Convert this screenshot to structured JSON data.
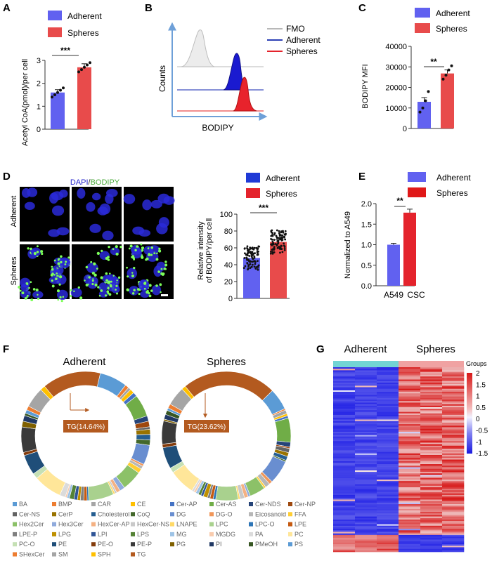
{
  "colors": {
    "adherent": "#6161f0",
    "spheres": "#e84b4b",
    "blue": "#1f3ad6",
    "red": "#e4232c",
    "teal": "#72d4d4",
    "pink": "#f0a2a2"
  },
  "panel_labels": [
    "A",
    "B",
    "C",
    "D",
    "E",
    "F",
    "G"
  ],
  "legend": {
    "adherent": "Adherent",
    "spheres": "Spheres"
  },
  "panelA": {
    "ylabel": "Acetyl CoA(pmol)/per cell",
    "yticks": [
      "0",
      "1",
      "2",
      "3"
    ],
    "sig": "***"
  },
  "panelB": {
    "legend": [
      "FMO",
      "Adherent",
      "Spheres"
    ],
    "ylabel": "Counts",
    "xlabel": "BODIPY"
  },
  "panelC": {
    "ylabel": "BODIPY MFI",
    "yticks": [
      "0",
      "10000",
      "20000",
      "30000",
      "40000"
    ],
    "sig": "**"
  },
  "panelD": {
    "title_dapi": "DAPI",
    "title_sep": "/",
    "title_bodipy": "BODIPY",
    "row_labels": [
      "Adherent",
      "Spheres"
    ],
    "ylabel1": "Relative intensity",
    "ylabel2": "of BODIPY/per cell",
    "yticks": [
      "0",
      "20",
      "40",
      "60",
      "80",
      "100"
    ],
    "sig": "***"
  },
  "panelE": {
    "legend": [
      "Adherent",
      "Spheres"
    ],
    "ylabel": "Normalized to A549",
    "yticks": [
      "0.0",
      "0.5",
      "1.0",
      "1.5",
      "2.0"
    ],
    "xticks": [
      "A549",
      "CSC"
    ],
    "sig": "**"
  },
  "panelF": {
    "titles": [
      "Adherent",
      "Spheres"
    ],
    "callouts": [
      "TG(14.64%)",
      "TG(23.62%)"
    ],
    "legend": [
      "BA",
      "BMP",
      "CAR",
      "CE",
      "Cer-AP",
      "Cer-AS",
      "Cer-NDS",
      "Cer-NP",
      "Cer-NS",
      "CerP",
      "Cholesterol",
      "CoQ",
      "DG",
      "DG-O",
      "Eicosanoid",
      "FFA",
      "Hex2Cer",
      "Hex3Cer",
      "HexCer-AP",
      "HexCer-NS",
      "LNAPE",
      "LPC",
      "LPC-O",
      "LPE",
      "LPE-P",
      "LPG",
      "LPI",
      "LPS",
      "MG",
      "MGDG",
      "PA",
      "PC",
      "PC-O",
      "PE",
      "PE-O",
      "PE-P",
      "PG",
      "PI",
      "PMeOH",
      "PS",
      "SHexCer",
      "SM",
      "SPH",
      "TG"
    ],
    "legend_colors": [
      "#5b9bd5",
      "#ed7d31",
      "#a5a5a5",
      "#ffc000",
      "#4472c4",
      "#70ad47",
      "#264478",
      "#9e480e",
      "#636363",
      "#997300",
      "#255e91",
      "#43682b",
      "#698ed0",
      "#f1975a",
      "#b7b7b7",
      "#ffcd33",
      "#8cc168",
      "#8faadc",
      "#f4b183",
      "#c9c9c9",
      "#ffd966",
      "#a9d18e",
      "#2e75b6",
      "#c55a11",
      "#7f7f7f",
      "#bf9000",
      "#2f5597",
      "#548235",
      "#9dc3e6",
      "#f8cbad",
      "#dbdbdb",
      "#ffe699",
      "#c5e0b4",
      "#1f4e79",
      "#843c0c",
      "#3a3a3a",
      "#7f6000",
      "#203864",
      "#375623",
      "#5b9bd5",
      "#ed7d31",
      "#a5a5a5",
      "#ffc000",
      "#b35a1f"
    ]
  },
  "panelG": {
    "title_left": "Adherent",
    "title_right": "Spheres",
    "groups_label": "Groups",
    "scale": [
      "2",
      "1.5",
      "1",
      "0.5",
      "0",
      "-0.5",
      "-1",
      "-1.5"
    ]
  },
  "chart_data": [
    {
      "type": "bar",
      "panel": "A",
      "categories": [
        "Adherent",
        "Spheres"
      ],
      "values": [
        1.6,
        2.7
      ],
      "ylabel": "Acetyl CoA(pmol)/per cell",
      "ylim": [
        0,
        3
      ],
      "points": [
        [
          1.4,
          1.5,
          1.6,
          1.7,
          1.8
        ],
        [
          2.5,
          2.6,
          2.7,
          2.8,
          2.9
        ]
      ]
    },
    {
      "type": "bar",
      "panel": "C",
      "categories": [
        "Adherent",
        "Spheres"
      ],
      "values": [
        13000,
        26800
      ],
      "ylabel": "BODIPY MFI",
      "ylim": [
        0,
        40000
      ],
      "points": [
        [
          8000,
          10000,
          13500,
          18000
        ],
        [
          24000,
          26000,
          28500,
          30500
        ]
      ]
    },
    {
      "type": "bar",
      "panel": "D",
      "categories": [
        "Adherent",
        "Spheres"
      ],
      "values": [
        48,
        67
      ],
      "ylabel": "Relative intensity of BODIPY/per cell",
      "ylim": [
        0,
        100
      ]
    },
    {
      "type": "bar",
      "panel": "E",
      "categories": [
        "A549",
        "CSC"
      ],
      "values": [
        1.0,
        1.78
      ],
      "ylabel": "Normalized to A549",
      "ylim": [
        0,
        2.0
      ]
    },
    {
      "type": "pie",
      "panel": "F-Adherent",
      "callout": "TG(14.64%)"
    },
    {
      "type": "pie",
      "panel": "F-Spheres",
      "callout": "TG(23.62%)"
    },
    {
      "type": "heatmap",
      "panel": "G",
      "groups": [
        "Adherent",
        "Spheres"
      ],
      "color_range": [
        -1.5,
        2
      ]
    }
  ]
}
